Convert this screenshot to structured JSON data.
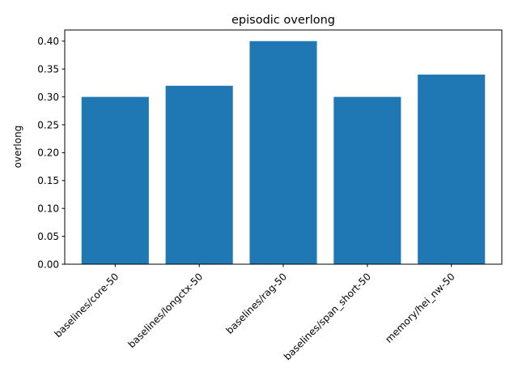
{
  "chart_data": {
    "type": "bar",
    "title": "episodic overlong",
    "xlabel": "",
    "ylabel": "overlong",
    "categories": [
      "baselines/core-50",
      "baselines/longctx-50",
      "baselines/rag-50",
      "baselines/span_short-50",
      "memory/hei_nw-50"
    ],
    "values": [
      0.3,
      0.32,
      0.4,
      0.3,
      0.34
    ],
    "ylim": [
      0,
      0.42
    ],
    "yticks": [
      "0.00",
      "0.05",
      "0.10",
      "0.15",
      "0.20",
      "0.25",
      "0.30",
      "0.35",
      "0.40"
    ],
    "bar_color": "#1f77b4",
    "grid": false,
    "legend": "none"
  }
}
